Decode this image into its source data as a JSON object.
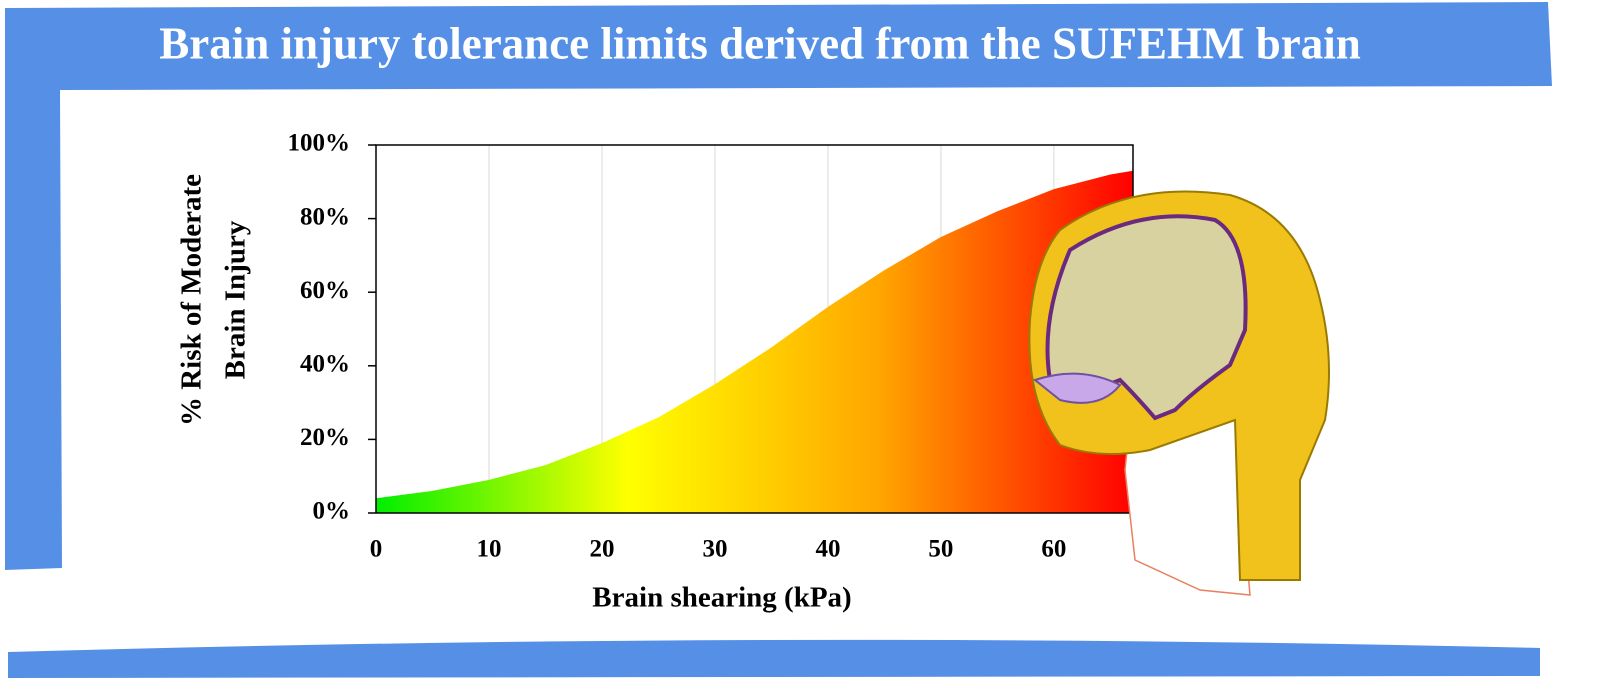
{
  "chart_data": {
    "type": "area",
    "title": "Brain injury tolerance limits derived from the SUFEHM brain",
    "xlabel": "Brain shearing (kPa)",
    "ylabel": [
      "% Risk of Moderate",
      "Brain Injury"
    ],
    "x": [
      0,
      5,
      10,
      15,
      20,
      25,
      30,
      35,
      40,
      45,
      50,
      55,
      60,
      65,
      67
    ],
    "values": [
      4,
      6,
      9,
      13,
      19,
      26,
      35,
      45,
      56,
      66,
      75,
      82,
      88,
      92,
      93
    ],
    "fill_gradient": [
      "#00ee00",
      "#ffff00",
      "#ffa500",
      "#ff0000"
    ],
    "xlim": [
      0,
      67
    ],
    "xticks": [
      0,
      10,
      20,
      30,
      40,
      50,
      60
    ],
    "ylim": [
      0,
      100
    ],
    "yticks": [
      {
        "value": 0,
        "label": "0%"
      },
      {
        "value": 20,
        "label": "20%"
      },
      {
        "value": 40,
        "label": "40%"
      },
      {
        "value": 60,
        "label": "60%"
      },
      {
        "value": 80,
        "label": "80%"
      },
      {
        "value": 100,
        "label": "100%"
      }
    ],
    "grid": true
  }
}
